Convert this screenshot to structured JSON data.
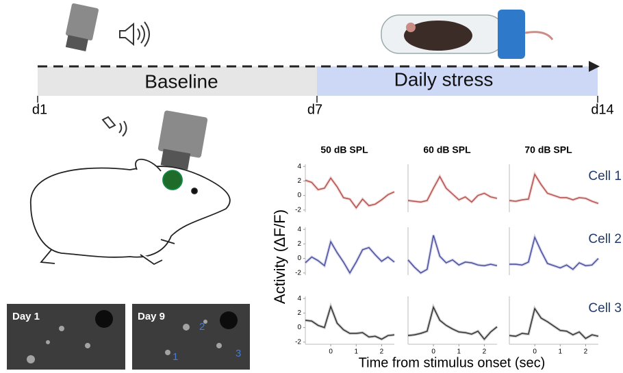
{
  "timeline": {
    "phases": [
      {
        "label": "Baseline"
      },
      {
        "label": "Daily stress"
      }
    ],
    "days": [
      "d1",
      "d7",
      "d14"
    ]
  },
  "images": [
    {
      "label": "Day 1"
    },
    {
      "label": "Day 9",
      "cells": [
        "1",
        "2",
        "3"
      ]
    }
  ],
  "plot": {
    "ylabel": "Activity (ΔF/F)",
    "xlabel": "Time from stimulus onset (sec)",
    "columns": [
      "50 dB SPL",
      "60 dB SPL",
      "70 dB SPL"
    ],
    "x": [
      -1,
      -0.75,
      -0.5,
      -0.25,
      0,
      0.25,
      0.5,
      0.75,
      1,
      1.25,
      1.5,
      1.75,
      2,
      2.25,
      2.5
    ],
    "xlim": [
      -1,
      2.5
    ],
    "ylim": [
      -2.3,
      4.3
    ],
    "yticks": [
      4,
      2,
      0,
      -2
    ],
    "xticks": [
      0,
      1,
      2
    ],
    "rows": [
      {
        "name": "Cell 1",
        "color": "#b5524e",
        "series": [
          [
            2.1,
            1.8,
            0.8,
            1.0,
            2.4,
            1.2,
            -0.3,
            -0.5,
            -1.7,
            -0.5,
            -1.4,
            -1.2,
            -0.6,
            0.1,
            0.5
          ],
          [
            -0.7,
            -0.8,
            -0.9,
            -0.7,
            1.0,
            2.6,
            1.0,
            0.2,
            -0.6,
            -0.2,
            -0.9,
            0.0,
            0.3,
            -0.2,
            -0.4
          ],
          [
            -0.7,
            -0.8,
            -0.6,
            -0.5,
            2.9,
            1.5,
            0.3,
            0.0,
            -0.3,
            -0.3,
            -0.6,
            -0.3,
            -0.4,
            -0.8,
            -1.1
          ]
        ]
      },
      {
        "name": "Cell 2",
        "color": "#4b4fa0",
        "series": [
          [
            -0.6,
            0.2,
            -0.3,
            -1.0,
            2.3,
            0.8,
            -0.5,
            -2.0,
            -0.5,
            1.2,
            1.5,
            0.5,
            -0.4,
            0.2,
            -0.5
          ],
          [
            -0.2,
            -1.2,
            -2.0,
            -1.5,
            3.2,
            0.3,
            -0.6,
            -0.2,
            -0.9,
            -0.5,
            -0.6,
            -0.9,
            -1.0,
            -0.8,
            -1.0
          ],
          [
            -0.8,
            -0.8,
            -0.9,
            -0.5,
            2.9,
            1.0,
            -0.7,
            -1.0,
            -1.3,
            -0.9,
            -1.5,
            -0.6,
            -1.0,
            -0.9,
            0.0
          ]
        ]
      },
      {
        "name": "Cell 3",
        "color": "#333333",
        "series": [
          [
            1.0,
            0.9,
            0.3,
            0.0,
            2.9,
            0.6,
            -0.3,
            -0.8,
            -0.8,
            -0.7,
            -1.3,
            -1.2,
            -1.6,
            -1.1,
            -1.0
          ],
          [
            -1.1,
            -1.0,
            -0.8,
            -0.5,
            2.8,
            1.0,
            0.3,
            -0.2,
            -0.6,
            -0.7,
            -0.9,
            -0.5,
            -1.6,
            -0.6,
            0.1
          ],
          [
            -1.1,
            -1.2,
            -0.8,
            -0.9,
            2.6,
            1.3,
            0.8,
            0.2,
            -0.4,
            -0.5,
            -1.0,
            -0.6,
            -1.5,
            -1.0,
            -1.2
          ]
        ]
      }
    ]
  }
}
